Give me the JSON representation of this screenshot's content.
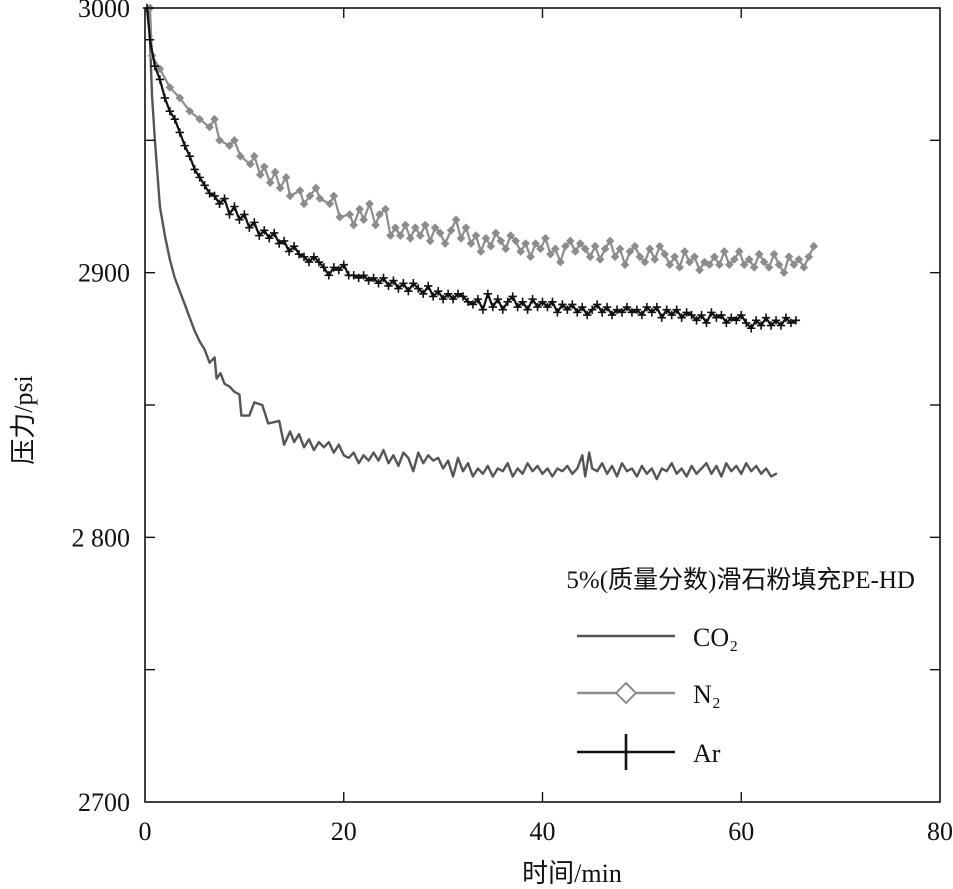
{
  "chart_data": {
    "type": "line",
    "xlabel": "时间/min",
    "ylabel": "压力/psi",
    "annotation": "5%(质量分数)滑石粉填充PE-HD",
    "xlim": [
      0,
      80
    ],
    "ylim": [
      2700,
      3000
    ],
    "xticks": [
      0,
      20,
      40,
      60,
      80
    ],
    "xtick_labels": [
      "0",
      "20",
      "40",
      "60",
      "80"
    ],
    "yticks": [
      2700,
      2800,
      2900,
      3000
    ],
    "ytick_labels": [
      "2700",
      "2 800",
      "2900",
      "3000"
    ],
    "yminor_ticks": [
      2750,
      2850,
      2950
    ],
    "grid": false,
    "legend_position": "bottom-right",
    "series": [
      {
        "name": "CO₂",
        "color": "#555555",
        "marker": "none",
        "x": [
          0.3,
          0.5,
          0.7,
          1.0,
          1.5,
          2.0,
          2.5,
          3.0,
          3.5,
          4.0,
          4.5,
          5.0,
          5.5,
          6.0,
          6.5,
          7.0,
          7.2,
          7.6,
          8.0,
          8.5,
          9.0,
          9.5,
          9.7,
          10.5,
          11.0,
          11.8,
          12.4,
          13.5,
          14.0,
          14.6,
          15.0,
          15.5,
          16.0,
          16.5,
          17.0,
          17.5,
          18.0,
          18.5,
          19.0,
          19.5,
          20.0,
          20.5,
          21.0,
          21.5,
          22.0,
          22.5,
          23.0,
          23.5,
          24.0,
          24.5,
          25.0,
          25.5,
          26.0,
          26.5,
          27.0,
          27.5,
          28.0,
          28.5,
          29.0,
          29.5,
          30.0,
          30.5,
          31.0,
          31.5,
          32.0,
          32.5,
          33.0,
          33.5,
          34.0,
          34.5,
          35.0,
          35.5,
          36.0,
          36.5,
          37.0,
          37.5,
          38.0,
          38.5,
          39.0,
          39.5,
          40.0,
          40.5,
          41.0,
          41.5,
          42.0,
          42.5,
          43.0,
          43.5,
          44.0,
          44.3,
          44.7,
          45.0,
          45.5,
          46.0,
          46.5,
          47.0,
          47.5,
          48.0,
          48.5,
          49.0,
          49.5,
          50.0,
          50.5,
          51.0,
          51.5,
          52.0,
          52.5,
          53.0,
          53.5,
          54.0,
          54.5,
          55.0,
          55.5,
          56.0,
          56.5,
          57.0,
          57.5,
          58.0,
          58.5,
          59.0,
          59.5,
          60.0,
          60.5,
          61.0,
          61.5,
          62.0,
          62.5,
          63.0,
          63.5
        ],
        "y": [
          3000,
          2988,
          2967,
          2950,
          2925,
          2914,
          2905,
          2898,
          2893,
          2888,
          2883,
          2878,
          2874,
          2871,
          2866,
          2868,
          2860,
          2862,
          2858,
          2857,
          2855,
          2854,
          2846,
          2846,
          2851,
          2850,
          2843,
          2844,
          2835,
          2840,
          2836,
          2839,
          2834,
          2837,
          2833,
          2836,
          2834,
          2836,
          2832,
          2835,
          2831,
          2830,
          2832,
          2828,
          2831,
          2829,
          2832,
          2829,
          2833,
          2828,
          2831,
          2827,
          2832,
          2830,
          2825,
          2832,
          2828,
          2831,
          2829,
          2830,
          2826,
          2829,
          2823,
          2830,
          2825,
          2828,
          2823,
          2826,
          2824,
          2827,
          2823,
          2826,
          2825,
          2828,
          2823,
          2826,
          2824,
          2828,
          2825,
          2827,
          2824,
          2826,
          2823,
          2826,
          2825,
          2827,
          2824,
          2826,
          2831,
          2823,
          2832,
          2826,
          2825,
          2828,
          2824,
          2827,
          2823,
          2828,
          2825,
          2826,
          2823,
          2827,
          2824,
          2826,
          2822,
          2826,
          2825,
          2828,
          2824,
          2826,
          2823,
          2827,
          2824,
          2826,
          2828,
          2824,
          2827,
          2823,
          2828,
          2825,
          2827,
          2824,
          2828,
          2825,
          2827,
          2824,
          2826,
          2823,
          2824
        ]
      },
      {
        "name": "N₂",
        "color": "#8c8c8c",
        "marker": "diamond",
        "x": [
          0.5,
          0.7,
          1.5,
          2.5,
          3.5,
          4.5,
          5.5,
          6.5,
          7.0,
          7.5,
          8.5,
          9.0,
          9.6,
          10.6,
          11.0,
          11.6,
          12.0,
          12.6,
          13.1,
          13.6,
          14.2,
          14.6,
          15.6,
          16.0,
          16.6,
          17.2,
          17.6,
          18.6,
          19.0,
          19.6,
          20.6,
          21.0,
          21.6,
          22.0,
          22.6,
          23.2,
          23.6,
          24.2,
          24.7,
          25.2,
          25.7,
          26.2,
          26.7,
          27.2,
          27.7,
          28.2,
          28.7,
          29.2,
          29.7,
          30.2,
          30.8,
          31.3,
          31.8,
          32.3,
          32.8,
          33.3,
          33.8,
          34.3,
          34.8,
          35.3,
          35.8,
          36.3,
          36.8,
          37.3,
          37.8,
          38.3,
          38.8,
          39.3,
          39.8,
          40.3,
          40.8,
          41.3,
          41.8,
          42.3,
          42.8,
          43.3,
          43.8,
          44.3,
          44.8,
          45.3,
          45.8,
          46.3,
          46.8,
          47.3,
          47.8,
          48.3,
          48.8,
          49.3,
          49.8,
          50.3,
          50.8,
          51.3,
          51.8,
          52.3,
          52.8,
          53.3,
          53.8,
          54.3,
          54.8,
          55.3,
          55.8,
          56.3,
          56.8,
          57.3,
          57.8,
          58.3,
          58.8,
          59.3,
          59.8,
          60.3,
          60.8,
          61.3,
          61.8,
          62.3,
          62.8,
          63.3,
          63.8,
          64.3,
          64.8,
          65.3,
          65.8,
          66.3,
          66.8,
          67.3
        ],
        "y": [
          3000,
          2982,
          2977,
          2970,
          2966,
          2961,
          2958,
          2955,
          2958,
          2950,
          2948,
          2950,
          2944,
          2941,
          2944,
          2937,
          2940,
          2934,
          2938,
          2932,
          2936,
          2929,
          2931,
          2926,
          2929,
          2932,
          2928,
          2926,
          2929,
          2921,
          2922,
          2918,
          2924,
          2920,
          2926,
          2918,
          2922,
          2924,
          2914,
          2917,
          2914,
          2918,
          2913,
          2917,
          2914,
          2918,
          2912,
          2917,
          2915,
          2911,
          2916,
          2920,
          2913,
          2917,
          2911,
          2914,
          2908,
          2913,
          2910,
          2915,
          2912,
          2909,
          2914,
          2912,
          2908,
          2911,
          2906,
          2911,
          2909,
          2913,
          2907,
          2909,
          2904,
          2910,
          2912,
          2908,
          2911,
          2909,
          2906,
          2910,
          2905,
          2909,
          2912,
          2906,
          2909,
          2903,
          2908,
          2910,
          2906,
          2904,
          2909,
          2905,
          2910,
          2907,
          2903,
          2906,
          2902,
          2908,
          2904,
          2906,
          2901,
          2904,
          2903,
          2906,
          2903,
          2908,
          2903,
          2905,
          2908,
          2903,
          2905,
          2902,
          2907,
          2904,
          2902,
          2907,
          2903,
          2900,
          2906,
          2903,
          2905,
          2902,
          2906,
          2910
        ]
      },
      {
        "name": "Ar",
        "color": "#111111",
        "marker": "plus",
        "x": [
          0.2,
          0.5,
          1.0,
          1.5,
          2.0,
          2.5,
          3.0,
          3.5,
          4.0,
          4.5,
          5.0,
          5.5,
          6.0,
          6.5,
          7.0,
          7.5,
          8.0,
          8.5,
          9.0,
          9.5,
          10.0,
          10.5,
          11.0,
          11.5,
          12.0,
          12.5,
          13.0,
          13.5,
          14.0,
          14.5,
          15.0,
          15.5,
          16.0,
          16.5,
          17.0,
          17.5,
          18.0,
          18.5,
          19.0,
          19.5,
          20.0,
          20.5,
          21.0,
          21.5,
          22.0,
          22.5,
          23.0,
          23.5,
          24.0,
          24.5,
          25.0,
          25.5,
          26.0,
          26.5,
          27.0,
          27.5,
          28.0,
          28.5,
          29.0,
          29.5,
          30.0,
          30.5,
          31.0,
          31.5,
          32.0,
          32.5,
          33.0,
          33.5,
          34.0,
          34.5,
          35.0,
          35.5,
          36.0,
          36.5,
          37.0,
          37.5,
          38.0,
          38.5,
          39.0,
          39.5,
          40.0,
          40.5,
          41.0,
          41.5,
          42.0,
          42.5,
          43.0,
          43.5,
          44.0,
          44.5,
          45.0,
          45.5,
          46.0,
          46.5,
          47.0,
          47.5,
          48.0,
          48.5,
          49.0,
          49.5,
          50.0,
          50.5,
          51.0,
          51.5,
          52.0,
          52.5,
          53.0,
          53.5,
          54.0,
          54.5,
          55.0,
          55.5,
          56.0,
          56.5,
          57.0,
          57.5,
          58.0,
          58.5,
          59.0,
          59.5,
          60.0,
          60.5,
          61.0,
          61.5,
          62.0,
          62.5,
          63.0,
          63.5,
          64.0,
          64.5,
          65.0,
          65.5
        ],
        "y": [
          3000,
          2988,
          2978,
          2973,
          2966,
          2961,
          2958,
          2953,
          2948,
          2944,
          2939,
          2936,
          2933,
          2930,
          2929,
          2926,
          2928,
          2922,
          2925,
          2920,
          2922,
          2917,
          2919,
          2914,
          2916,
          2913,
          2915,
          2911,
          2912,
          2908,
          2910,
          2907,
          2906,
          2904,
          2906,
          2904,
          2902,
          2899,
          2902,
          2901,
          2903,
          2899,
          2899,
          2898,
          2899,
          2897,
          2898,
          2896,
          2898,
          2895,
          2897,
          2894,
          2896,
          2893,
          2896,
          2894,
          2892,
          2895,
          2891,
          2893,
          2890,
          2892,
          2890,
          2892,
          2891,
          2889,
          2888,
          2890,
          2886,
          2892,
          2887,
          2890,
          2886,
          2889,
          2891,
          2887,
          2889,
          2886,
          2890,
          2887,
          2889,
          2887,
          2889,
          2885,
          2888,
          2886,
          2888,
          2885,
          2887,
          2884,
          2886,
          2888,
          2885,
          2887,
          2884,
          2886,
          2885,
          2887,
          2885,
          2886,
          2884,
          2887,
          2885,
          2887,
          2883,
          2886,
          2884,
          2886,
          2883,
          2885,
          2884,
          2882,
          2884,
          2881,
          2885,
          2883,
          2884,
          2881,
          2883,
          2882,
          2884,
          2881,
          2879,
          2882,
          2880,
          2883,
          2880,
          2882,
          2880,
          2883,
          2881,
          2882
        ]
      }
    ]
  }
}
